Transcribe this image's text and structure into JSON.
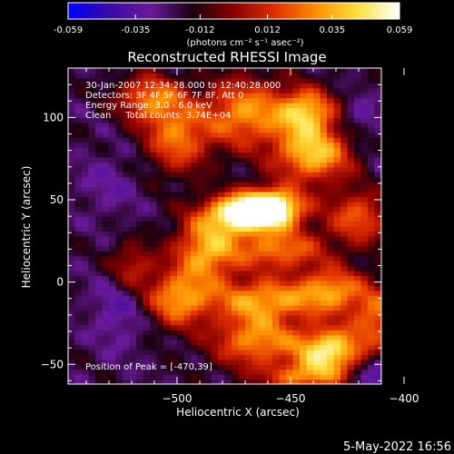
{
  "colorbar": {
    "tick_labels": [
      "-0.059",
      "-0.035",
      "-0.012",
      "0.012",
      "0.035",
      "0.059"
    ],
    "tick_values": [
      -0.059,
      -0.035,
      -0.012,
      0.012,
      0.035,
      0.059
    ],
    "range": [
      -0.059,
      0.059
    ],
    "unit_label": "(photons cm⁻² s⁻¹ asec⁻²)",
    "colors": [
      "#0000ff",
      "#3a0aa8",
      "#6a1a9a",
      "#1a0010",
      "#8a0000",
      "#e03000",
      "#ff9000",
      "#ffe040",
      "#ffffff"
    ]
  },
  "chart_data": {
    "type": "heatmap",
    "title": "Reconstructed RHESSI Image",
    "xlabel": "Heliocentric X (arcsec)",
    "ylabel": "Heliocentric Y (arcsec)",
    "xlim": [
      -548,
      -410
    ],
    "ylim": [
      -62,
      130
    ],
    "x_ticks": [
      -500,
      -450,
      -400
    ],
    "x_tick_labels": [
      "−500",
      "−450",
      "−400"
    ],
    "y_ticks": [
      -50,
      0,
      50,
      100
    ],
    "y_tick_labels": [
      "−50",
      "0",
      "50",
      "100"
    ],
    "annotations": [
      "30-Jan-2007 12:34:28.000 to 12:40:28.000",
      "Detectors: 3F 4F 5F 6F 7F 8F, Att 0",
      "Energy Range: 3.0 - 6.0 keV",
      "Clean     Total counts: 3.74E+04"
    ],
    "peak_label": "Position of Peak = [-470,39]",
    "peak": [
      -470,
      39
    ],
    "blobs": [
      {
        "x": -470,
        "y": 42,
        "sx": 12,
        "sy": 8,
        "a": 0.059
      },
      {
        "x": -458,
        "y": 46,
        "sx": 10,
        "sy": 8,
        "a": 0.05
      },
      {
        "x": -440,
        "y": 78,
        "sx": 12,
        "sy": 12,
        "a": 0.04
      },
      {
        "x": -443,
        "y": 104,
        "sx": 9,
        "sy": 10,
        "a": 0.036
      },
      {
        "x": -470,
        "y": 103,
        "sx": 13,
        "sy": 15,
        "a": 0.03
      },
      {
        "x": -500,
        "y": 88,
        "sx": 10,
        "sy": 15,
        "a": 0.024
      },
      {
        "x": -512,
        "y": 112,
        "sx": 10,
        "sy": 10,
        "a": 0.024
      },
      {
        "x": -487,
        "y": 20,
        "sx": 10,
        "sy": 14,
        "a": 0.035
      },
      {
        "x": -455,
        "y": 20,
        "sx": 14,
        "sy": 9,
        "a": 0.026
      },
      {
        "x": -420,
        "y": 40,
        "sx": 10,
        "sy": 12,
        "a": 0.02
      },
      {
        "x": -500,
        "y": -10,
        "sx": 10,
        "sy": 12,
        "a": 0.03
      },
      {
        "x": -462,
        "y": -10,
        "sx": 16,
        "sy": 9,
        "a": 0.03
      },
      {
        "x": -432,
        "y": -5,
        "sx": 10,
        "sy": 10,
        "a": 0.028
      },
      {
        "x": -465,
        "y": -35,
        "sx": 14,
        "sy": 12,
        "a": 0.03
      },
      {
        "x": -433,
        "y": -42,
        "sx": 10,
        "sy": 10,
        "a": 0.05
      },
      {
        "x": -412,
        "y": -22,
        "sx": 8,
        "sy": 14,
        "a": 0.022
      },
      {
        "x": -445,
        "y": -58,
        "sx": 12,
        "sy": 6,
        "a": 0.02
      },
      {
        "x": -520,
        "y": 10,
        "sx": 7,
        "sy": 10,
        "a": 0.012
      },
      {
        "x": -420,
        "y": 100,
        "sx": 6,
        "sy": 8,
        "a": -0.035
      },
      {
        "x": -530,
        "y": 60,
        "sx": 10,
        "sy": 14,
        "a": -0.03
      },
      {
        "x": -525,
        "y": -15,
        "sx": 9,
        "sy": 18,
        "a": -0.035
      },
      {
        "x": -410,
        "y": 70,
        "sx": 6,
        "sy": 12,
        "a": -0.025
      },
      {
        "x": -407,
        "y": -55,
        "sx": 10,
        "sy": 8,
        "a": -0.045
      }
    ]
  },
  "footer": {
    "timestamp": "5-May-2022 16:56"
  }
}
